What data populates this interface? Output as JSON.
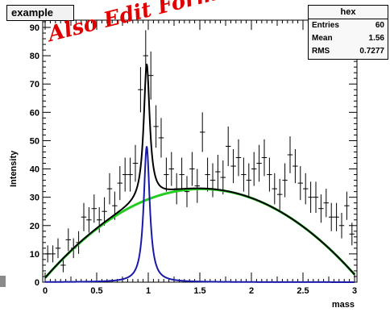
{
  "title_box": {
    "text": "example"
  },
  "stats": {
    "header": "hex",
    "rows": [
      {
        "label": "Entries",
        "value": "60"
      },
      {
        "label": "Mean",
        "value": "1.56"
      },
      {
        "label": "RMS",
        "value": "0.7277"
      }
    ]
  },
  "overlay_text": "Also Edit Forma",
  "chart_data": {
    "type": "scatter",
    "xlabel": "mass",
    "ylabel": "Intensity",
    "xlim": [
      0,
      3
    ],
    "ylim": [
      0,
      95
    ],
    "x_ticks": [
      "0",
      "0.5",
      "1",
      "1.5",
      "2",
      "2.5",
      "3"
    ],
    "y_ticks": [
      "0",
      "10",
      "20",
      "30",
      "40",
      "50",
      "60",
      "70",
      "80",
      "90"
    ],
    "grid": false,
    "data_points": [
      {
        "x": 0.025,
        "y": 10,
        "err": 3
      },
      {
        "x": 0.075,
        "y": 10,
        "err": 3
      },
      {
        "x": 0.125,
        "y": 12,
        "err": 3.5
      },
      {
        "x": 0.175,
        "y": 6,
        "err": 2.5
      },
      {
        "x": 0.225,
        "y": 15,
        "err": 4
      },
      {
        "x": 0.275,
        "y": 12,
        "err": 3.5
      },
      {
        "x": 0.325,
        "y": 14,
        "err": 4
      },
      {
        "x": 0.375,
        "y": 23,
        "err": 5
      },
      {
        "x": 0.425,
        "y": 22,
        "err": 4.5
      },
      {
        "x": 0.475,
        "y": 26,
        "err": 5
      },
      {
        "x": 0.525,
        "y": 22,
        "err": 4.5
      },
      {
        "x": 0.575,
        "y": 25,
        "err": 5
      },
      {
        "x": 0.625,
        "y": 33,
        "err": 5.5
      },
      {
        "x": 0.675,
        "y": 27,
        "err": 5
      },
      {
        "x": 0.725,
        "y": 35,
        "err": 6
      },
      {
        "x": 0.775,
        "y": 38,
        "err": 6
      },
      {
        "x": 0.825,
        "y": 38,
        "err": 6
      },
      {
        "x": 0.875,
        "y": 42,
        "err": 6.5
      },
      {
        "x": 0.925,
        "y": 68,
        "err": 8
      },
      {
        "x": 0.975,
        "y": 80,
        "err": 9
      },
      {
        "x": 1.025,
        "y": 73,
        "err": 8.5
      },
      {
        "x": 1.075,
        "y": 55,
        "err": 7.5
      },
      {
        "x": 1.125,
        "y": 51,
        "err": 7
      },
      {
        "x": 1.175,
        "y": 38,
        "err": 6
      },
      {
        "x": 1.225,
        "y": 40,
        "err": 6
      },
      {
        "x": 1.275,
        "y": 33,
        "err": 5.5
      },
      {
        "x": 1.325,
        "y": 38,
        "err": 6
      },
      {
        "x": 1.375,
        "y": 32,
        "err": 5.5
      },
      {
        "x": 1.425,
        "y": 40,
        "err": 6
      },
      {
        "x": 1.475,
        "y": 34,
        "err": 6
      },
      {
        "x": 1.525,
        "y": 53,
        "err": 7
      },
      {
        "x": 1.575,
        "y": 38,
        "err": 6
      },
      {
        "x": 1.625,
        "y": 36,
        "err": 6
      },
      {
        "x": 1.675,
        "y": 39,
        "err": 6
      },
      {
        "x": 1.725,
        "y": 37,
        "err": 6
      },
      {
        "x": 1.775,
        "y": 48,
        "err": 7
      },
      {
        "x": 1.825,
        "y": 41,
        "err": 6
      },
      {
        "x": 1.875,
        "y": 44,
        "err": 6.5
      },
      {
        "x": 1.925,
        "y": 38,
        "err": 6
      },
      {
        "x": 1.975,
        "y": 36,
        "err": 6
      },
      {
        "x": 2.025,
        "y": 40,
        "err": 6
      },
      {
        "x": 2.075,
        "y": 42,
        "err": 6.5
      },
      {
        "x": 2.125,
        "y": 44,
        "err": 6.5
      },
      {
        "x": 2.175,
        "y": 38,
        "err": 6
      },
      {
        "x": 2.225,
        "y": 33,
        "err": 5.5
      },
      {
        "x": 2.275,
        "y": 31,
        "err": 5.5
      },
      {
        "x": 2.325,
        "y": 36,
        "err": 6
      },
      {
        "x": 2.375,
        "y": 45,
        "err": 6.5
      },
      {
        "x": 2.425,
        "y": 41,
        "err": 6
      },
      {
        "x": 2.475,
        "y": 35,
        "err": 6
      },
      {
        "x": 2.525,
        "y": 33,
        "err": 5.5
      },
      {
        "x": 2.575,
        "y": 30,
        "err": 5.5
      },
      {
        "x": 2.625,
        "y": 30,
        "err": 5.5
      },
      {
        "x": 2.675,
        "y": 26,
        "err": 5
      },
      {
        "x": 2.725,
        "y": 28,
        "err": 5
      },
      {
        "x": 2.775,
        "y": 23,
        "err": 5
      },
      {
        "x": 2.825,
        "y": 23,
        "err": 5
      },
      {
        "x": 2.875,
        "y": 20,
        "err": 4.5
      },
      {
        "x": 2.925,
        "y": 27,
        "err": 5
      },
      {
        "x": 2.975,
        "y": 17,
        "err": 4
      }
    ],
    "curves": [
      {
        "id": "total",
        "color": "#000000"
      },
      {
        "id": "background",
        "color": "#22cc22"
      },
      {
        "id": "peak",
        "color": "#1a1aaa"
      }
    ],
    "fit_model": {
      "bg_a": 1.5,
      "bg_b": 41.5,
      "bg_c": -13.7,
      "peak_amp": 48,
      "peak_mu": 0.985,
      "peak_gamma": 0.035
    }
  }
}
